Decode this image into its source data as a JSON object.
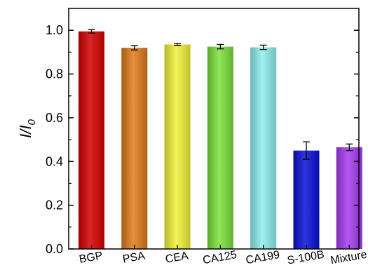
{
  "chart_data": {
    "type": "bar",
    "title": "",
    "xlabel": "",
    "ylabel": "I/I",
    "ylabel_subscript": "0",
    "ylim": [
      0,
      1.1
    ],
    "yticks": [
      "0.0",
      "0.2",
      "0.4",
      "0.6",
      "0.8",
      "1.0"
    ],
    "categories": [
      "BGP",
      "PSA",
      "CEA",
      "CA125",
      "CA199",
      "S-100B",
      "Mixture"
    ],
    "values": [
      0.995,
      0.92,
      0.935,
      0.925,
      0.922,
      0.45,
      0.465
    ],
    "errors": [
      0.008,
      0.01,
      0.004,
      0.01,
      0.01,
      0.04,
      0.015
    ],
    "colors": [
      "#d40000",
      "#e07a1a",
      "#f2f23a",
      "#7be23a",
      "#8ef0f0",
      "#0a10d8",
      "#a63cf0"
    ],
    "grid": false,
    "legend": "none"
  }
}
